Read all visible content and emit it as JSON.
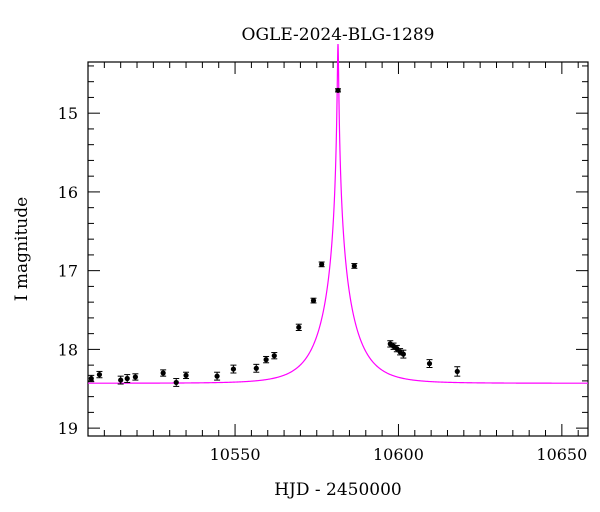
{
  "chart_data": {
    "type": "scatter",
    "title": "OGLE-2024-BLG-1289",
    "xlabel": "HJD - 2450000",
    "ylabel": "I magnitude",
    "xlim": [
      10505,
      10658
    ],
    "ylim": [
      19.1,
      14.35
    ],
    "y_inverted": true,
    "x_major_ticks": [
      10550,
      10600,
      10650
    ],
    "x_minor_step": 5,
    "y_major_ticks": [
      15,
      16,
      17,
      18,
      19
    ],
    "y_minor_step": 0.2,
    "grid": false,
    "legend": "none",
    "colors": {
      "points": "#000000",
      "model": "#ff00ff",
      "axes": "#000000"
    },
    "series": [
      {
        "type": "scatter",
        "points": [
          {
            "x": 10506.0,
            "y": 18.37,
            "err": 0.04
          },
          {
            "x": 10508.5,
            "y": 18.32,
            "err": 0.04
          },
          {
            "x": 10515.0,
            "y": 18.39,
            "err": 0.05
          },
          {
            "x": 10517.0,
            "y": 18.37,
            "err": 0.05
          },
          {
            "x": 10519.5,
            "y": 18.35,
            "err": 0.04
          },
          {
            "x": 10528.0,
            "y": 18.3,
            "err": 0.04
          },
          {
            "x": 10532.0,
            "y": 18.42,
            "err": 0.05
          },
          {
            "x": 10535.0,
            "y": 18.33,
            "err": 0.04
          },
          {
            "x": 10544.5,
            "y": 18.34,
            "err": 0.05
          },
          {
            "x": 10549.5,
            "y": 18.25,
            "err": 0.05
          },
          {
            "x": 10556.5,
            "y": 18.24,
            "err": 0.05
          },
          {
            "x": 10559.5,
            "y": 18.13,
            "err": 0.04
          },
          {
            "x": 10562.0,
            "y": 18.08,
            "err": 0.04
          },
          {
            "x": 10569.5,
            "y": 17.72,
            "err": 0.04
          },
          {
            "x": 10574.0,
            "y": 17.38,
            "err": 0.03
          },
          {
            "x": 10576.5,
            "y": 16.92,
            "err": 0.03
          },
          {
            "x": 10581.5,
            "y": 14.71,
            "err": 0.02
          },
          {
            "x": 10586.5,
            "y": 16.94,
            "err": 0.03
          },
          {
            "x": 10597.5,
            "y": 17.93,
            "err": 0.04
          },
          {
            "x": 10598.5,
            "y": 17.96,
            "err": 0.04
          },
          {
            "x": 10599.5,
            "y": 17.99,
            "err": 0.04
          },
          {
            "x": 10600.5,
            "y": 18.03,
            "err": 0.04
          },
          {
            "x": 10601.5,
            "y": 18.06,
            "err": 0.05
          },
          {
            "x": 10609.5,
            "y": 18.18,
            "err": 0.05
          },
          {
            "x": 10618.0,
            "y": 18.28,
            "err": 0.06
          }
        ]
      },
      {
        "type": "line",
        "model": {
          "t0": 10581.5,
          "tE": 10.0,
          "u0": 0.018,
          "baseline": 18.43,
          "fs": 0.95
        }
      }
    ]
  }
}
